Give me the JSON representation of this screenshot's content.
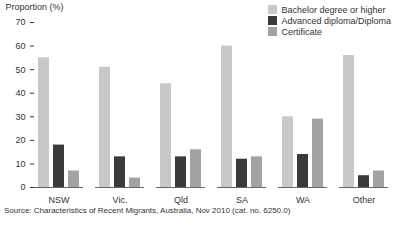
{
  "chart_data": {
    "type": "bar",
    "ylabel": "Proportion (%)",
    "caption": "Source: Characteristics of Recent Migrants, Australia, Nov 2010 (cat. no. 6250.0)",
    "categories": [
      "NSW",
      "Vic.",
      "Qld",
      "SA",
      "WA",
      "Other"
    ],
    "series": [
      {
        "name": "Bachelor degree or higher",
        "color": "#c8c8c8",
        "values": [
          55,
          51,
          44,
          60,
          30,
          56
        ]
      },
      {
        "name": "Advanced diploma/Diploma",
        "color": "#3a3a3a",
        "values": [
          18,
          13,
          13,
          12,
          14,
          5
        ]
      },
      {
        "name": "Certificate",
        "color": "#a3a3a3",
        "values": [
          7,
          4,
          16,
          13,
          29,
          7
        ]
      }
    ],
    "ylim": [
      0,
      70
    ],
    "yticks": [
      0,
      10,
      20,
      30,
      40,
      50,
      60,
      70
    ],
    "grid": false,
    "legend": "top-right"
  }
}
